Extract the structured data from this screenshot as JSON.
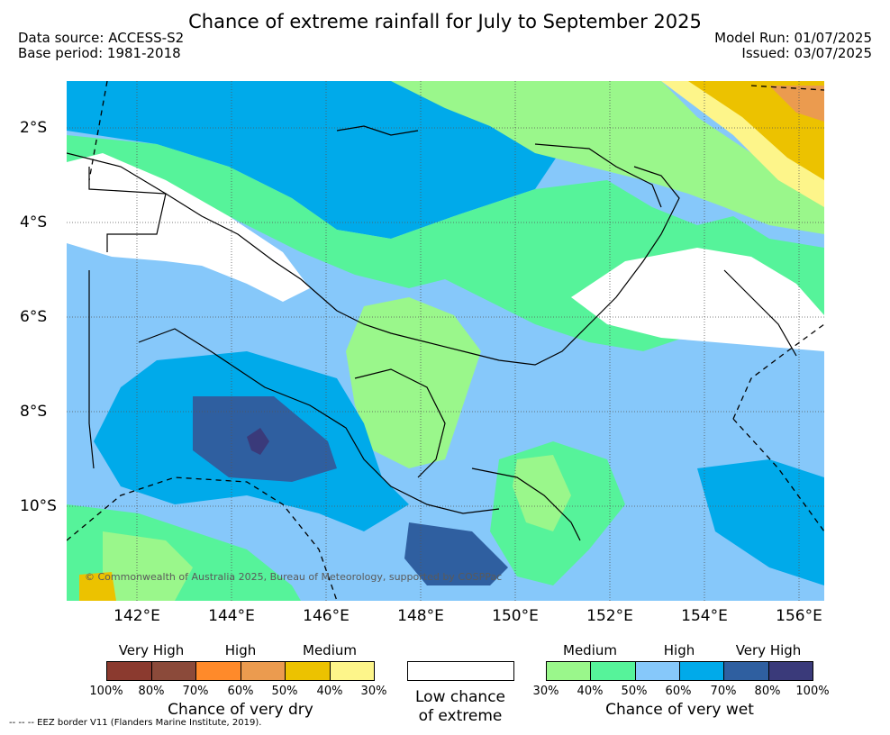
{
  "header": {
    "title": "Chance of extreme rainfall for July to September 2025",
    "data_source": "Data source: ACCESS-S2",
    "base_period": "Base period: 1981-2018",
    "model_run": "Model Run: 01/07/2025",
    "issued": "Issued: 03/07/2025"
  },
  "map": {
    "lat_labels": [
      "2°S",
      "4°S",
      "6°S",
      "8°S",
      "10°S"
    ],
    "lon_labels": [
      "142°E",
      "144°E",
      "146°E",
      "148°E",
      "150°E",
      "152°E",
      "154°E",
      "156°E"
    ],
    "copyright": "© Commonwealth of Australia 2025, Bureau of Meteorology, supported by COSPPac"
  },
  "legend": {
    "dry": {
      "headers": [
        "Very High",
        "High",
        "Medium"
      ],
      "colors": [
        "#8b3a2f",
        "#8b4a3a",
        "#ff8a2a",
        "#eb9b4f",
        "#ecc200",
        "#fdf58a"
      ],
      "ticks": [
        "100%",
        "80%",
        "70%",
        "60%",
        "50%",
        "40%",
        "30%"
      ],
      "caption": "Chance of very dry"
    },
    "low": {
      "caption_line1": "Low chance",
      "caption_line2": "of extreme"
    },
    "wet": {
      "headers": [
        "Medium",
        "High",
        "Very High"
      ],
      "colors": [
        "#9af78b",
        "#56f39a",
        "#86c8fa",
        "#00aaea",
        "#2f5fa0",
        "#3a3a7a"
      ],
      "ticks": [
        "30%",
        "40%",
        "50%",
        "60%",
        "70%",
        "80%",
        "100%"
      ],
      "caption": "Chance of very wet"
    },
    "eez_note": "--  --  -- EEZ border V11 (Flanders Marine Institute, 2019)."
  }
}
